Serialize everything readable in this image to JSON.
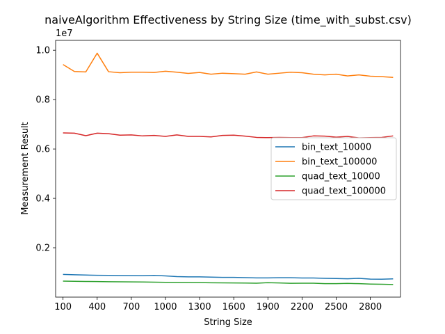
{
  "chart_data": {
    "type": "line",
    "title": "naiveAlgorithm Effectiveness by String Size (time_with_subst.csv)",
    "xlabel": "String Size",
    "ylabel": "Measurement Result",
    "y_offset_label": "1e7",
    "xlim": [
      35,
      3065
    ],
    "ylim": [
      0,
      10400000
    ],
    "x_ticks": [
      100,
      400,
      700,
      1000,
      1300,
      1600,
      1900,
      2200,
      2500,
      2800
    ],
    "x_tick_labels": [
      "100",
      "400",
      "700",
      "1000",
      "1300",
      "1600",
      "1900",
      "2200",
      "2500",
      "2800"
    ],
    "y_ticks": [
      2000000,
      4000000,
      6000000,
      8000000,
      10000000
    ],
    "y_tick_labels": [
      "0.2",
      "0.4",
      "0.6",
      "0.8",
      "1.0"
    ],
    "legend_position": "center-right",
    "grid": false,
    "x": [
      100,
      200,
      300,
      400,
      500,
      600,
      700,
      800,
      900,
      1000,
      1100,
      1200,
      1300,
      1400,
      1500,
      1600,
      1700,
      1800,
      1900,
      2000,
      2100,
      2200,
      2300,
      2400,
      2500,
      2600,
      2700,
      2800,
      2900,
      3000
    ],
    "series": [
      {
        "name": "bin_text_10000",
        "color": "#1f77b4",
        "values": [
          920000,
          905000,
          895000,
          885000,
          880000,
          875000,
          870000,
          865000,
          880000,
          860000,
          830000,
          820000,
          820000,
          810000,
          800000,
          800000,
          790000,
          780000,
          780000,
          785000,
          785000,
          775000,
          775000,
          760000,
          755000,
          745000,
          760000,
          730000,
          725000,
          740000
        ]
      },
      {
        "name": "bin_text_100000",
        "color": "#ff7f0e",
        "values": [
          9420000,
          9140000,
          9120000,
          9880000,
          9130000,
          9090000,
          9110000,
          9110000,
          9100000,
          9150000,
          9110000,
          9060000,
          9100000,
          9030000,
          9070000,
          9050000,
          9030000,
          9120000,
          9030000,
          9070000,
          9110000,
          9090000,
          9030000,
          9000000,
          9030000,
          8960000,
          9000000,
          8950000,
          8930000,
          8900000
        ]
      },
      {
        "name": "quad_text_10000",
        "color": "#2ca02c",
        "values": [
          650000,
          640000,
          635000,
          630000,
          625000,
          620000,
          615000,
          612000,
          605000,
          600000,
          595000,
          592000,
          588000,
          580000,
          578000,
          575000,
          570000,
          565000,
          585000,
          575000,
          560000,
          565000,
          562000,
          545000,
          545000,
          555000,
          545000,
          530000,
          520000,
          510000
        ]
      },
      {
        "name": "quad_text_100000",
        "color": "#d62728",
        "values": [
          6650000,
          6640000,
          6540000,
          6640000,
          6620000,
          6560000,
          6570000,
          6530000,
          6550000,
          6510000,
          6570000,
          6510000,
          6510000,
          6490000,
          6550000,
          6560000,
          6520000,
          6470000,
          6460000,
          6470000,
          6460000,
          6460000,
          6530000,
          6520000,
          6480000,
          6510000,
          6450000,
          6460000,
          6470000,
          6530000
        ]
      }
    ]
  }
}
